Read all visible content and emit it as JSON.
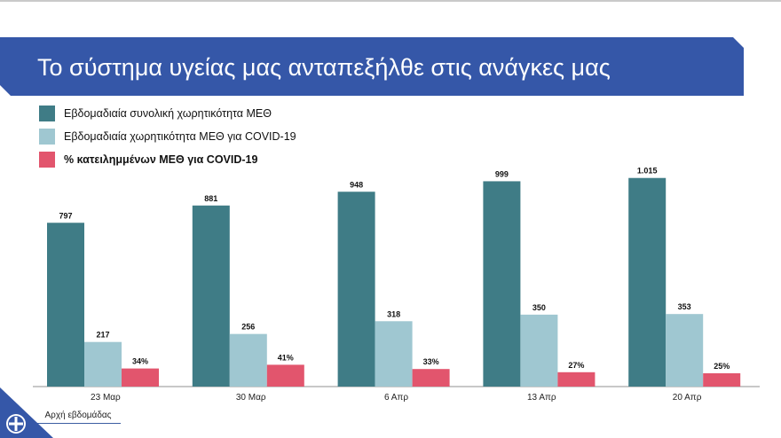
{
  "title": "Το σύστημα υγείας μας ανταπεξήλθε στις ανάγκες μας",
  "colors": {
    "banner": "#3557a8",
    "total_icu": "#3f7c86",
    "covid_icu": "#9fc7d1",
    "pct_occupied": "#e2556d"
  },
  "chart_data": {
    "type": "bar",
    "categories": [
      "23 Μαρ",
      "30 Μαρ",
      "6 Απρ",
      "13 Απρ",
      "20 Απρ"
    ],
    "series": [
      {
        "name": "Εβδομαδιαία συνολική χωρητικότητα ΜΕΘ",
        "values": [
          797,
          881,
          948,
          999,
          1015
        ],
        "labels": [
          "797",
          "881",
          "948",
          "999",
          "1.015"
        ]
      },
      {
        "name": "Εβδομαδιαία χωρητικότητα ΜΕΘ για COVID-19",
        "values": [
          217,
          256,
          318,
          350,
          353
        ],
        "labels": [
          "217",
          "256",
          "318",
          "350",
          "353"
        ]
      },
      {
        "name": "% κατειλημμένων ΜΕΘ για COVID-19",
        "values": [
          34,
          41,
          33,
          27,
          25
        ],
        "labels": [
          "34%",
          "41%",
          "33%",
          "27%",
          "25%"
        ]
      }
    ]
  },
  "footnote": "Αρχή εβδομάδας"
}
